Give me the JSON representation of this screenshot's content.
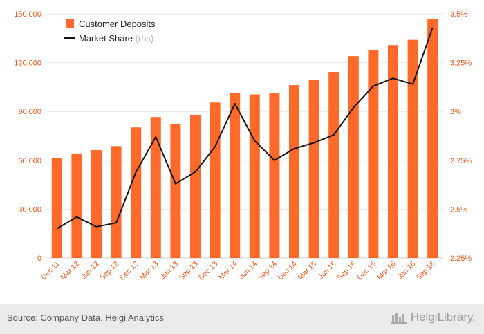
{
  "chart_data": {
    "type": "bar+line",
    "categories": [
      "Dec 11",
      "Mar 12",
      "Jun 12",
      "Sep 12",
      "Dec 12",
      "Mar 13",
      "Jun 13",
      "Sep 13",
      "Dec 13",
      "Mar 14",
      "Jun 14",
      "Sep 14",
      "Dec 14",
      "Mar 15",
      "Jun 15",
      "Sep 15",
      "Dec 15",
      "Mar 16",
      "Jun 16",
      "Sep 16"
    ],
    "series": [
      {
        "name": "Customer Deposits",
        "kind": "bar",
        "axis": "left",
        "color": "#ff6a2b",
        "values": [
          61500,
          64200,
          66300,
          68700,
          80200,
          86600,
          82000,
          88000,
          95500,
          101500,
          100500,
          101500,
          106200,
          109200,
          114300,
          124000,
          127500,
          130800,
          134000,
          147000
        ]
      },
      {
        "name": "Market Share",
        "name_suffix": "(rhs)",
        "kind": "line",
        "axis": "right",
        "color": "#111111",
        "values": [
          2.4,
          2.46,
          2.41,
          2.43,
          2.69,
          2.87,
          2.63,
          2.69,
          2.82,
          3.04,
          2.85,
          2.75,
          2.81,
          2.84,
          2.88,
          3.02,
          3.13,
          3.17,
          3.14,
          3.43
        ]
      }
    ],
    "left_axis": {
      "ticks": [
        "0",
        "30,000",
        "60,000",
        "90,000",
        "120,000",
        "150,000"
      ],
      "min": 0,
      "max": 150000,
      "step": 30000
    },
    "right_axis": {
      "ticks": [
        "2.25%",
        "2.5%",
        "2.75%",
        "3%",
        "3.25%",
        "3.5%"
      ],
      "min": 2.25,
      "max": 3.5,
      "step": 0.25
    },
    "grid": true,
    "legend_position": "top-left"
  },
  "footer": {
    "source": "Source: Company Data, Helgi Analytics",
    "brand": "HelgiLibrary."
  }
}
